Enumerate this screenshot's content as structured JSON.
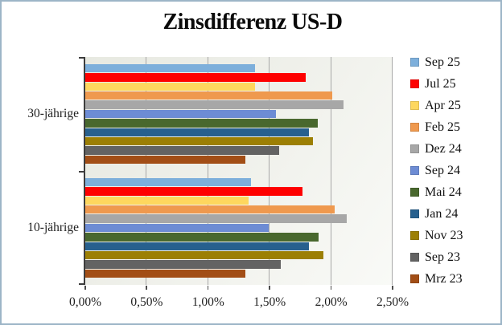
{
  "window": {
    "border_color": "#9db5c7",
    "background": "#ffffff"
  },
  "chart_data": {
    "type": "bar",
    "orientation": "horizontal",
    "title": "Zinsdifferenz US-D",
    "categories": [
      "30-jährige",
      "10-jährige"
    ],
    "x_axis": {
      "tick_labels": [
        "0,00%",
        "0,50%",
        "1,00%",
        "1,50%",
        "2,00%",
        "2,50%"
      ],
      "min": 0,
      "max": 2.5,
      "unit": "%"
    },
    "series": [
      {
        "name": "Sep 25",
        "color": "#7dafdb",
        "values": [
          1.38,
          1.35
        ]
      },
      {
        "name": "Jul 25",
        "color": "#fe0000",
        "values": [
          1.79,
          1.77
        ]
      },
      {
        "name": "Apr 25",
        "color": "#fed75e",
        "values": [
          1.38,
          1.33
        ]
      },
      {
        "name": "Feb 25",
        "color": "#ef994e",
        "values": [
          2.01,
          2.03
        ]
      },
      {
        "name": "Dez 24",
        "color": "#a7a7a7",
        "values": [
          2.1,
          2.13
        ]
      },
      {
        "name": "Sep 24",
        "color": "#6d8cd4",
        "values": [
          1.55,
          1.49
        ]
      },
      {
        "name": "Mai 24",
        "color": "#49682e",
        "values": [
          1.89,
          1.9
        ]
      },
      {
        "name": "Jan 24",
        "color": "#27608e",
        "values": [
          1.82,
          1.82
        ]
      },
      {
        "name": "Nov 23",
        "color": "#9c7f04",
        "values": [
          1.85,
          1.94
        ]
      },
      {
        "name": "Sep 23",
        "color": "#636363",
        "values": [
          1.58,
          1.59
        ]
      },
      {
        "name": "Mrz 23",
        "color": "#a24e16",
        "values": [
          1.3,
          1.3
        ]
      }
    ],
    "legend_position": "right",
    "gridlines": true,
    "gridline_color": "#a8a8a8",
    "axis_color": "#3d3d3d",
    "plot_background": [
      "#e7e9e1",
      "#f9faf7"
    ]
  }
}
